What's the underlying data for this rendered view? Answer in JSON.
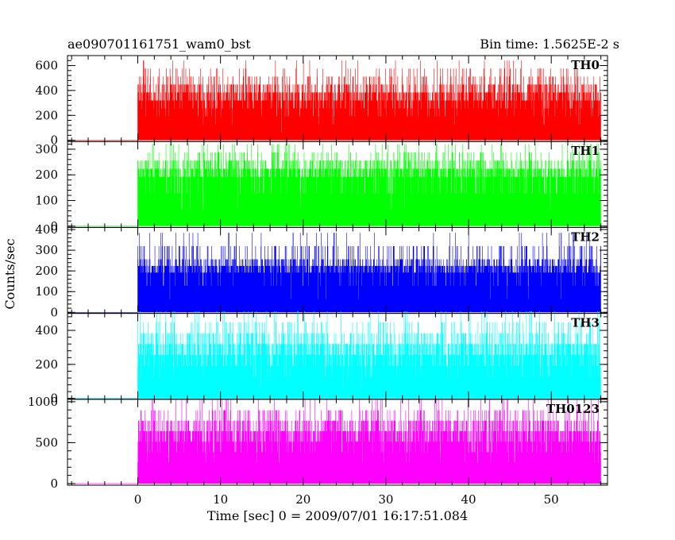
{
  "header": {
    "left_title": "ae090701161751_wam0_bst",
    "right_title": "Bin time: 1.5625E-2 s"
  },
  "chart_data": {
    "type": "line",
    "style": "histogram",
    "xlabel": "Time [sec] 0 = 2009/07/01 16:17:51.084",
    "ylabel": "Counts/sec",
    "xlim": [
      -8.5,
      56.8
    ],
    "x_ticks": [
      "0",
      "10",
      "20",
      "30",
      "40",
      "50"
    ],
    "x_tick_values": [
      0,
      10,
      20,
      30,
      40,
      50
    ],
    "data_start": -8,
    "burst_start": 0,
    "data_end": 56,
    "grid": false,
    "panels": [
      {
        "name": "TH0",
        "color": "#ff0000",
        "ylim": [
          -10,
          680
        ],
        "y_ticks": [
          0,
          200,
          400,
          600
        ],
        "y_tick_labels": [
          "0",
          "200",
          "400",
          "600"
        ],
        "pre_level": 0,
        "levels": [
          64,
          128,
          192,
          256,
          320,
          384,
          448,
          512,
          576,
          640
        ],
        "weights": [
          2,
          4,
          10,
          14,
          22,
          18,
          12,
          6,
          3,
          1
        ]
      },
      {
        "name": "TH1",
        "color": "#00ff00",
        "ylim": [
          -5,
          330
        ],
        "y_ticks": [
          0,
          100,
          200,
          300
        ],
        "y_tick_labels": [
          "0",
          "100",
          "200",
          "300"
        ],
        "pre_level": 0,
        "levels": [
          64,
          128,
          192,
          224,
          256,
          288,
          320
        ],
        "weights": [
          6,
          14,
          22,
          20,
          10,
          5,
          2
        ]
      },
      {
        "name": "TH2",
        "color": "#0000ff",
        "ylim": [
          -5,
          410
        ],
        "y_ticks": [
          0,
          100,
          200,
          300,
          400
        ],
        "y_tick_labels": [
          "0",
          "100",
          "200",
          "300",
          "400"
        ],
        "pre_level": 0,
        "levels": [
          64,
          128,
          192,
          224,
          256,
          320,
          384
        ],
        "weights": [
          5,
          12,
          20,
          22,
          10,
          6,
          2
        ]
      },
      {
        "name": "TH3",
        "color": "#00ffff",
        "ylim": [
          -5,
          500
        ],
        "y_ticks": [
          0,
          200,
          400
        ],
        "y_tick_labels": [
          "0",
          "200",
          "400"
        ],
        "pre_level": 0,
        "levels": [
          64,
          128,
          192,
          256,
          320,
          384,
          448,
          512
        ],
        "weights": [
          3,
          8,
          16,
          20,
          18,
          10,
          5,
          2
        ]
      },
      {
        "name": "TH0123",
        "color": "#ff00ff",
        "ylim": [
          -20,
          1030
        ],
        "y_ticks": [
          0,
          500,
          1000
        ],
        "y_tick_labels": [
          "0",
          "500",
          "1000"
        ],
        "pre_level": 0,
        "levels": [
          128,
          256,
          384,
          512,
          640,
          768,
          896,
          1024
        ],
        "weights": [
          2,
          6,
          12,
          18,
          20,
          14,
          6,
          2
        ]
      }
    ]
  }
}
